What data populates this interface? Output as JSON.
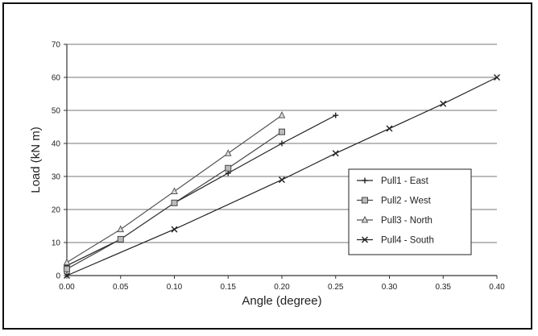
{
  "chart_data": {
    "type": "line",
    "xlabel": "Angle (degree)",
    "ylabel": "Load (kN m)",
    "xlim": [
      0,
      0.4
    ],
    "ylim": [
      0,
      70
    ],
    "x_ticks": [
      "0.00",
      "0.05",
      "0.10",
      "0.15",
      "0.20",
      "0.25",
      "0.30",
      "0.35",
      "0.40"
    ],
    "y_ticks": [
      "0",
      "10",
      "20",
      "30",
      "40",
      "50",
      "60",
      "70"
    ],
    "grid": "horizontal",
    "legend_position": "right",
    "series": [
      {
        "name": "Pull1 - East",
        "marker": "plus",
        "color": "#222222",
        "points": [
          [
            0.0,
            3
          ],
          [
            0.05,
            11
          ],
          [
            0.1,
            22
          ],
          [
            0.15,
            31
          ],
          [
            0.2,
            40
          ],
          [
            0.25,
            48.5
          ]
        ]
      },
      {
        "name": "Pull2 - West",
        "marker": "square",
        "color": "#444444",
        "points": [
          [
            0.0,
            2
          ],
          [
            0.05,
            11
          ],
          [
            0.1,
            22
          ],
          [
            0.15,
            32.5
          ],
          [
            0.2,
            43.5
          ]
        ]
      },
      {
        "name": "Pull3 - North",
        "marker": "triangle",
        "color": "#555555",
        "points": [
          [
            0.0,
            4
          ],
          [
            0.05,
            14
          ],
          [
            0.1,
            25.5
          ],
          [
            0.15,
            37
          ],
          [
            0.2,
            48.5
          ]
        ]
      },
      {
        "name": "Pull4 - South",
        "marker": "x",
        "color": "#222222",
        "points": [
          [
            0.0,
            0
          ],
          [
            0.1,
            14
          ],
          [
            0.2,
            29
          ],
          [
            0.25,
            37
          ],
          [
            0.3,
            44.5
          ],
          [
            0.35,
            52
          ],
          [
            0.4,
            60
          ]
        ]
      }
    ]
  }
}
